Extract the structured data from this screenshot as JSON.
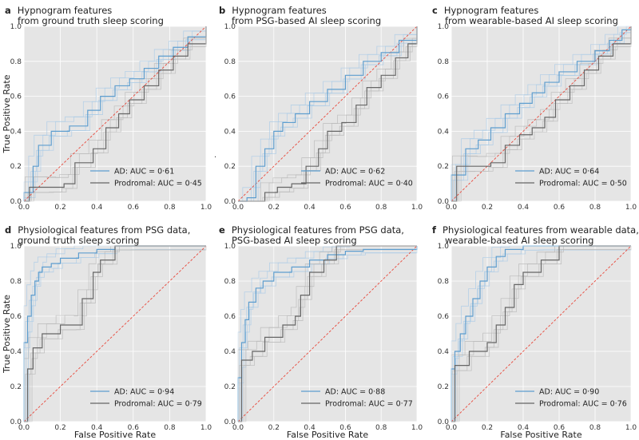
{
  "figure": {
    "xlabel": "False Positive Rate",
    "ylabel": "True Positive Rate",
    "stray_mark": ".",
    "colors": {
      "panel_bg": "#e5e5e5",
      "grid": "#ffffff",
      "ad_main": "#5e9ecf",
      "ad_fold": "#aacbe6",
      "prodromal_main": "#666666",
      "prodromal_fold": "#b9b9b9",
      "chance": "#e8493c"
    }
  },
  "chart_data": [
    {
      "type": "line",
      "letter": "a",
      "title_lines": [
        "Hypnogram features",
        "from ground truth sleep scoring"
      ],
      "xlim": [
        0,
        1
      ],
      "ylim": [
        0,
        1
      ],
      "xticks": [
        "0.0",
        "0.2",
        "0.4",
        "0.6",
        "0.8",
        "1.0"
      ],
      "yticks": [
        "0.0",
        "0.2",
        "0.4",
        "0.6",
        "0.8",
        "1.0"
      ],
      "legend_position": "lower-right",
      "series": [
        {
          "name": "AD: AUC = 0·61",
          "auc": 0.61,
          "x": [
            0,
            0,
            0.05,
            0.08,
            0.15,
            0.25,
            0.35,
            0.42,
            0.5,
            0.58,
            0.66,
            0.74,
            0.82,
            0.9,
            1
          ],
          "y": [
            0,
            0.05,
            0.2,
            0.32,
            0.4,
            0.43,
            0.52,
            0.6,
            0.66,
            0.7,
            0.76,
            0.83,
            0.88,
            0.94,
            1
          ]
        },
        {
          "name": "Prodromal: AUC = 0·45",
          "auc": 0.45,
          "x": [
            0,
            0.03,
            0.15,
            0.22,
            0.28,
            0.38,
            0.45,
            0.52,
            0.58,
            0.66,
            0.74,
            0.82,
            0.9,
            1
          ],
          "y": [
            0,
            0.08,
            0.08,
            0.1,
            0.22,
            0.3,
            0.42,
            0.5,
            0.58,
            0.66,
            0.75,
            0.83,
            0.9,
            1
          ]
        }
      ]
    },
    {
      "type": "line",
      "letter": "b",
      "title_lines": [
        "Hypnogram features",
        "from PSG-based AI sleep scoring"
      ],
      "xlim": [
        0,
        1
      ],
      "ylim": [
        0,
        1
      ],
      "xticks": [
        "0.0",
        "0.2",
        "0.4",
        "0.6",
        "0.8",
        "1.0"
      ],
      "yticks": [
        "0.0",
        "0.2",
        "0.4",
        "0.6",
        "0.8",
        "1.0"
      ],
      "legend_position": "lower-right",
      "series": [
        {
          "name": "AD: AUC = 0·62",
          "auc": 0.62,
          "x": [
            0,
            0.05,
            0.1,
            0.15,
            0.2,
            0.25,
            0.32,
            0.4,
            0.5,
            0.6,
            0.7,
            0.8,
            0.9,
            1
          ],
          "y": [
            0,
            0.02,
            0.2,
            0.3,
            0.4,
            0.45,
            0.5,
            0.57,
            0.64,
            0.72,
            0.8,
            0.85,
            0.92,
            1
          ]
        },
        {
          "name": "Prodromal: AUC = 0·40",
          "auc": 0.4,
          "x": [
            0,
            0.15,
            0.22,
            0.3,
            0.38,
            0.45,
            0.5,
            0.58,
            0.66,
            0.72,
            0.8,
            0.88,
            0.95,
            1
          ],
          "y": [
            0,
            0.05,
            0.08,
            0.1,
            0.2,
            0.3,
            0.4,
            0.45,
            0.55,
            0.65,
            0.72,
            0.82,
            0.9,
            1
          ]
        }
      ]
    },
    {
      "type": "line",
      "letter": "c",
      "title_lines": [
        "Hypnogram features",
        "from wearable-based AI sleep scoring"
      ],
      "xlim": [
        0,
        1
      ],
      "ylim": [
        0,
        1
      ],
      "xticks": [
        "0.0",
        "0.2",
        "0.4",
        "0.6",
        "0.8",
        "1.0"
      ],
      "yticks": [
        "0.0",
        "0.2",
        "0.4",
        "0.6",
        "0.8",
        "1.0"
      ],
      "legend_position": "lower-right",
      "series": [
        {
          "name": "AD: AUC = 0·64",
          "auc": 0.64,
          "x": [
            0,
            0,
            0.08,
            0.15,
            0.22,
            0.3,
            0.38,
            0.45,
            0.52,
            0.6,
            0.7,
            0.8,
            0.88,
            0.95,
            1
          ],
          "y": [
            0,
            0.15,
            0.3,
            0.35,
            0.42,
            0.5,
            0.56,
            0.62,
            0.68,
            0.74,
            0.8,
            0.86,
            0.92,
            0.98,
            1
          ]
        },
        {
          "name": "Prodromal: AUC = 0·50",
          "auc": 0.5,
          "x": [
            0,
            0.03,
            0.12,
            0.22,
            0.3,
            0.38,
            0.45,
            0.52,
            0.58,
            0.66,
            0.74,
            0.82,
            0.9,
            1
          ],
          "y": [
            0,
            0.2,
            0.2,
            0.22,
            0.32,
            0.38,
            0.42,
            0.48,
            0.58,
            0.66,
            0.75,
            0.83,
            0.9,
            1
          ]
        }
      ]
    },
    {
      "type": "line",
      "letter": "d",
      "title_lines": [
        "Physiological features from PSG data,",
        "ground truth sleep scoring"
      ],
      "xlim": [
        0,
        1
      ],
      "ylim": [
        0,
        1
      ],
      "xticks": [
        "0.0",
        "0.2",
        "0.4",
        "0.6",
        "0.8",
        "1.0"
      ],
      "yticks": [
        "0.0",
        "0.2",
        "0.4",
        "0.6",
        "0.8",
        "1.0"
      ],
      "legend_position": "lower-right",
      "series": [
        {
          "name": "AD: AUC = 0·94",
          "auc": 0.94,
          "x": [
            0,
            0,
            0.02,
            0.04,
            0.06,
            0.08,
            0.1,
            0.15,
            0.2,
            0.3,
            0.4,
            0.5,
            0.6,
            1
          ],
          "y": [
            0,
            0.45,
            0.6,
            0.72,
            0.8,
            0.85,
            0.88,
            0.9,
            0.93,
            0.96,
            0.98,
            1,
            1,
            1
          ]
        },
        {
          "name": "Prodromal: AUC = 0·79",
          "auc": 0.79,
          "x": [
            0,
            0.02,
            0.05,
            0.1,
            0.2,
            0.3,
            0.32,
            0.38,
            0.42,
            0.5,
            1
          ],
          "y": [
            0,
            0.3,
            0.42,
            0.5,
            0.55,
            0.55,
            0.7,
            0.85,
            0.92,
            1,
            1
          ]
        }
      ]
    },
    {
      "type": "line",
      "letter": "e",
      "title_lines": [
        "Physiological features from PSG data,",
        "PSG-based AI sleep scoring"
      ],
      "xlim": [
        0,
        1
      ],
      "ylim": [
        0,
        1
      ],
      "xticks": [
        "0.0",
        "0.2",
        "0.4",
        "0.6",
        "0.8",
        "1.0"
      ],
      "yticks": [
        "0.0",
        "0.2",
        "0.4",
        "0.6",
        "0.8",
        "1.0"
      ],
      "legend_position": "lower-right",
      "series": [
        {
          "name": "AD: AUC = 0·88",
          "auc": 0.88,
          "x": [
            0,
            0,
            0.02,
            0.04,
            0.06,
            0.1,
            0.14,
            0.2,
            0.3,
            0.4,
            0.5,
            0.6,
            0.7,
            1
          ],
          "y": [
            0,
            0.25,
            0.45,
            0.58,
            0.68,
            0.76,
            0.8,
            0.85,
            0.88,
            0.92,
            0.95,
            0.97,
            0.98,
            1
          ]
        },
        {
          "name": "Prodromal: AUC = 0·77",
          "auc": 0.77,
          "x": [
            0,
            0.02,
            0.08,
            0.15,
            0.25,
            0.32,
            0.35,
            0.4,
            0.48,
            0.55,
            1
          ],
          "y": [
            0,
            0.35,
            0.4,
            0.48,
            0.55,
            0.6,
            0.72,
            0.85,
            0.92,
            1,
            1
          ]
        }
      ]
    },
    {
      "type": "line",
      "letter": "f",
      "title_lines": [
        "Physiological features from wearable data,",
        "wearable-based AI sleep scoring"
      ],
      "xlim": [
        0,
        1
      ],
      "ylim": [
        0,
        1
      ],
      "xticks": [
        "0.0",
        "0.2",
        "0.4",
        "0.6",
        "0.8",
        "1.0"
      ],
      "yticks": [
        "0.0",
        "0.2",
        "0.4",
        "0.6",
        "0.8",
        "1.0"
      ],
      "legend_position": "lower-right",
      "series": [
        {
          "name": "AD: AUC = 0·90",
          "auc": 0.9,
          "x": [
            0,
            0,
            0.02,
            0.05,
            0.08,
            0.12,
            0.16,
            0.2,
            0.25,
            0.3,
            0.4,
            0.5,
            1
          ],
          "y": [
            0,
            0.3,
            0.4,
            0.5,
            0.6,
            0.7,
            0.8,
            0.88,
            0.94,
            0.98,
            1,
            1,
            1
          ]
        },
        {
          "name": "Prodromal: AUC = 0·76",
          "auc": 0.76,
          "x": [
            0,
            0.02,
            0.1,
            0.2,
            0.25,
            0.3,
            0.35,
            0.4,
            0.5,
            0.6,
            1
          ],
          "y": [
            0,
            0.32,
            0.4,
            0.45,
            0.55,
            0.65,
            0.78,
            0.85,
            0.92,
            1,
            1
          ]
        }
      ]
    }
  ]
}
